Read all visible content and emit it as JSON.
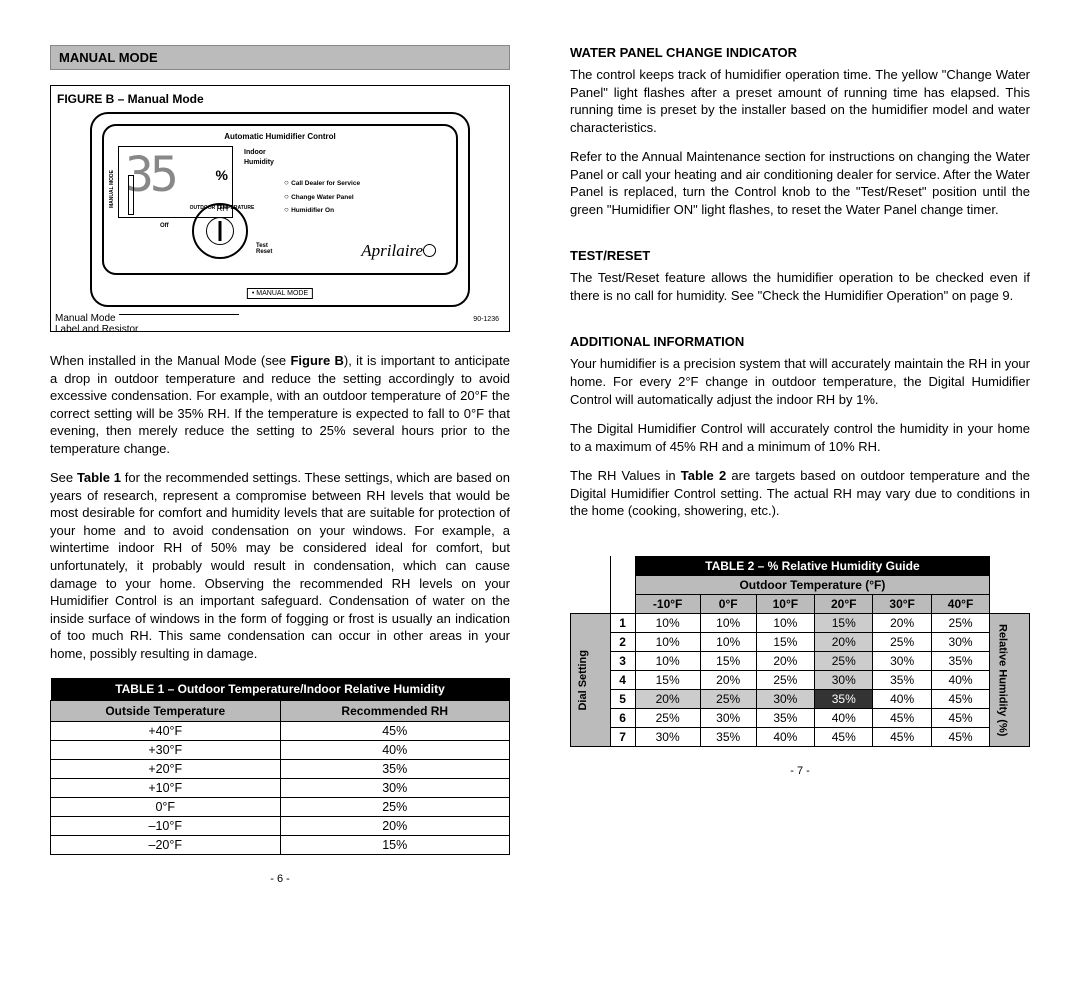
{
  "left": {
    "sectionTitle": "MANUAL MODE",
    "figure": {
      "caption": "FIGURE B – Manual Mode",
      "deviceTitle": "Automatic Humidifier Control",
      "lcdValue": "35",
      "lcdPct": "%",
      "lcdRH": "RH",
      "lcdLine1": "Indoor",
      "lcdLine2": "Humidity",
      "ind1": "Call Dealer for Service",
      "ind2": "Change Water Panel",
      "ind3": "Humidifier On",
      "arcLabel": "OUTDOOR TEMPERATURE",
      "manualModeVert": "MANUAL MODE",
      "offLabel": "Off",
      "testLabel": "Test",
      "resetLabel": "Reset",
      "brand": "Aprilaire",
      "mmBox": "• MANUAL MODE",
      "callout1": "Manual Mode",
      "callout2": "Label and Resistor",
      "figNum": "90-1236"
    },
    "para1a": "When installed in the Manual Mode (see ",
    "para1b": "Figure B",
    "para1c": "), it is important to anticipate a drop in outdoor temperature and reduce the setting accordingly to avoid excessive condensation. For example, with an outdoor temperature of 20°F the correct setting will be 35% RH. If the temperature is expected to fall to 0°F that evening, then merely reduce the setting to 25% several hours prior to the temperature change.",
    "para2a": "See ",
    "para2b": "Table 1",
    "para2c": " for the recommended settings. These settings, which are based on years of research, represent a compromise between RH levels that would be most desirable for comfort and humidity levels that are suitable for protection of your home and to avoid condensation on your windows. For example, a wintertime indoor RH of 50% may be considered ideal for comfort, but unfortunately, it probably would result in condensation, which can cause damage to your home. Observing the recommended RH levels on your Humidifier Control is an important safeguard. Condensation of water on the inside surface of windows in the form of fogging or frost is usually an indication of too much RH. This same condensation can occur in other areas in your home, possibly resulting in damage.",
    "table1": {
      "title": "TABLE 1 – Outdoor Temperature/Indoor Relative Humidity",
      "col1": "Outside Temperature",
      "col2": "Recommended RH",
      "rows": [
        [
          "+40°F",
          "45%"
        ],
        [
          "+30°F",
          "40%"
        ],
        [
          "+20°F",
          "35%"
        ],
        [
          "+10°F",
          "30%"
        ],
        [
          "0°F",
          "25%"
        ],
        [
          "–10°F",
          "20%"
        ],
        [
          "–20°F",
          "15%"
        ]
      ]
    },
    "pageNum": "- 6 -"
  },
  "right": {
    "s1": {
      "h": "WATER PANEL CHANGE INDICATOR",
      "p1": "The control keeps track of humidifier operation time. The yellow \"Change Water Panel\" light flashes after a preset amount of running time has elapsed. This running time is preset by the installer based on the humidifier model and water characteristics.",
      "p2": "Refer to the Annual Maintenance section for instructions on changing the Water Panel or call your heating and air conditioning dealer for service. After the Water Panel is replaced, turn the Control knob to the \"Test/Reset\" position until the green \"Humidifier ON\" light flashes, to reset the Water Panel change timer."
    },
    "s2": {
      "h": "TEST/RESET",
      "p1": "The Test/Reset feature allows the humidifier operation to be checked even if there is no call for humidity. See \"Check the Humidifier Operation\" on page 9."
    },
    "s3": {
      "h": "ADDITIONAL INFORMATION",
      "p1": "Your humidifier is a precision system that will accurately maintain the RH in your home. For every 2°F change in outdoor temperature, the Digital Humidifier Control will automatically adjust the indoor RH by 1%.",
      "p2": "The Digital Humidifier Control will accurately control the humidity in your home to a maximum of 45% RH and a minimum of 10% RH.",
      "p3a": "The RH Values in ",
      "p3b": "Table 2",
      "p3c": " are targets based on outdoor temperature and the Digital Humidifier Control setting. The actual RH may vary due to conditions in the home (cooking, showering, etc.)."
    },
    "table2": {
      "title": "TABLE 2 – % Relative Humidity Guide",
      "outdoorLabel": "Outdoor Temperature (°F)",
      "dialLabel": "Dial Setting",
      "rhLabel": "Relative Humidity (%)",
      "cols": [
        "-10°F",
        "0°F",
        "10°F",
        "20°F",
        "30°F",
        "40°F"
      ],
      "rows": [
        {
          "n": "1",
          "v": [
            "10%",
            "10%",
            "10%",
            "15%",
            "20%",
            "25%"
          ],
          "shade": [
            0,
            0,
            0,
            1,
            0,
            0
          ]
        },
        {
          "n": "2",
          "v": [
            "10%",
            "10%",
            "15%",
            "20%",
            "25%",
            "30%"
          ],
          "shade": [
            0,
            0,
            0,
            1,
            0,
            0
          ]
        },
        {
          "n": "3",
          "v": [
            "10%",
            "15%",
            "20%",
            "25%",
            "30%",
            "35%"
          ],
          "shade": [
            0,
            0,
            0,
            1,
            0,
            0
          ]
        },
        {
          "n": "4",
          "v": [
            "15%",
            "20%",
            "25%",
            "30%",
            "35%",
            "40%"
          ],
          "shade": [
            0,
            0,
            0,
            1,
            0,
            0
          ]
        },
        {
          "n": "5",
          "v": [
            "20%",
            "25%",
            "30%",
            "35%",
            "40%",
            "45%"
          ],
          "shade": [
            1,
            1,
            1,
            2,
            0,
            0
          ]
        },
        {
          "n": "6",
          "v": [
            "25%",
            "30%",
            "35%",
            "40%",
            "45%",
            "45%"
          ],
          "shade": [
            0,
            0,
            0,
            0,
            0,
            0
          ]
        },
        {
          "n": "7",
          "v": [
            "30%",
            "35%",
            "40%",
            "45%",
            "45%",
            "45%"
          ],
          "shade": [
            0,
            0,
            0,
            0,
            0,
            0
          ]
        }
      ]
    },
    "pageNum": "- 7 -"
  }
}
